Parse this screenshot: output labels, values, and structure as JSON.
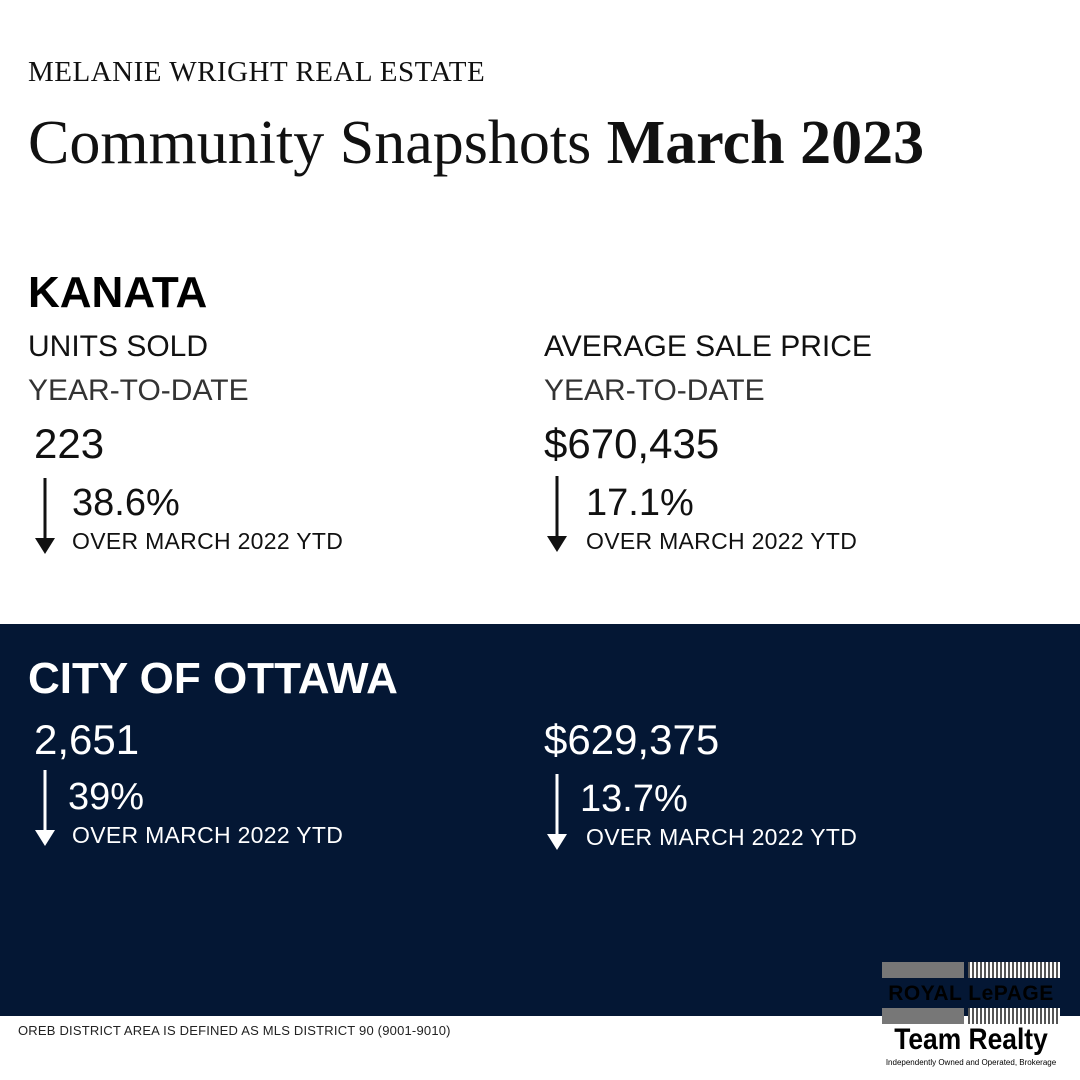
{
  "header": {
    "brand": "MELANIE WRIGHT REAL ESTATE",
    "title_regular": "Community Snapshots",
    "title_bold": "March 2023"
  },
  "kanata": {
    "name": "KANATA",
    "units": {
      "label": "UNITS SOLD",
      "period": "YEAR-TO-DATE",
      "value": "223",
      "change": "38.6%",
      "direction": "down",
      "comparison": "OVER MARCH 2022 YTD"
    },
    "price": {
      "label": "AVERAGE SALE PRICE",
      "period": "YEAR-TO-DATE",
      "value": "$670,435",
      "change": "17.1%",
      "direction": "down",
      "comparison": "OVER MARCH 2022 YTD"
    }
  },
  "ottawa": {
    "name": "CITY OF OTTAWA",
    "units": {
      "value": "2,651",
      "change": "39%",
      "direction": "down",
      "comparison": "OVER MARCH 2022 YTD"
    },
    "price": {
      "value": "$629,375",
      "change": "13.7%",
      "direction": "down",
      "comparison": "OVER MARCH 2022 YTD"
    }
  },
  "footnote": "OREB DISTRICT AREA IS DEFINED AS MLS DISTRICT 90 (9001-9010)",
  "logo": {
    "line1": "ROYAL LePAGE",
    "line2": "Team Realty",
    "line3": "Independently Owned and Operated, Brokerage"
  },
  "colors": {
    "navy": "#041734",
    "background": "#ffffff",
    "text": "#000000"
  },
  "icons": {
    "trend": "arrow-down-icon"
  }
}
